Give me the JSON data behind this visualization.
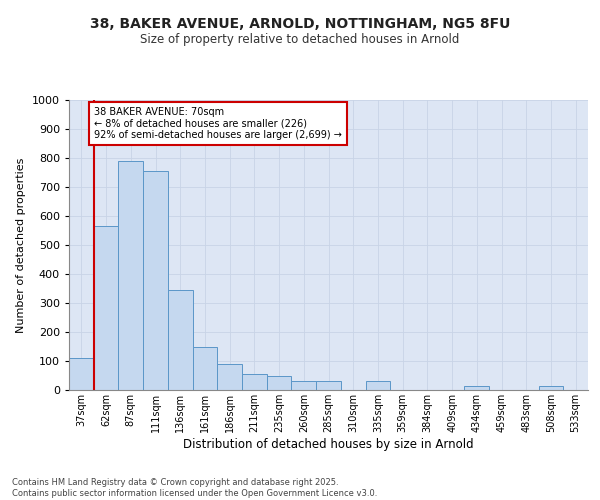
{
  "title_line1": "38, BAKER AVENUE, ARNOLD, NOTTINGHAM, NG5 8FU",
  "title_line2": "Size of property relative to detached houses in Arnold",
  "xlabel": "Distribution of detached houses by size in Arnold",
  "ylabel": "Number of detached properties",
  "categories": [
    "37sqm",
    "62sqm",
    "87sqm",
    "111sqm",
    "136sqm",
    "161sqm",
    "186sqm",
    "211sqm",
    "235sqm",
    "260sqm",
    "285sqm",
    "310sqm",
    "335sqm",
    "359sqm",
    "384sqm",
    "409sqm",
    "434sqm",
    "459sqm",
    "483sqm",
    "508sqm",
    "533sqm"
  ],
  "values": [
    110,
    565,
    790,
    755,
    345,
    150,
    90,
    55,
    50,
    30,
    30,
    0,
    30,
    0,
    0,
    0,
    15,
    0,
    0,
    15,
    0
  ],
  "bar_color": "#c5d8ef",
  "bar_edge_color": "#5b96c8",
  "grid_color": "#c8d4e6",
  "background_color": "#dde6f4",
  "vline_color": "#cc0000",
  "annotation_text": "38 BAKER AVENUE: 70sqm\n← 8% of detached houses are smaller (226)\n92% of semi-detached houses are larger (2,699) →",
  "annotation_box_color": "#ffffff",
  "annotation_box_edge": "#cc0000",
  "ylim": [
    0,
    1000
  ],
  "yticks": [
    0,
    100,
    200,
    300,
    400,
    500,
    600,
    700,
    800,
    900,
    1000
  ],
  "footer_line1": "Contains HM Land Registry data © Crown copyright and database right 2025.",
  "footer_line2": "Contains public sector information licensed under the Open Government Licence v3.0."
}
